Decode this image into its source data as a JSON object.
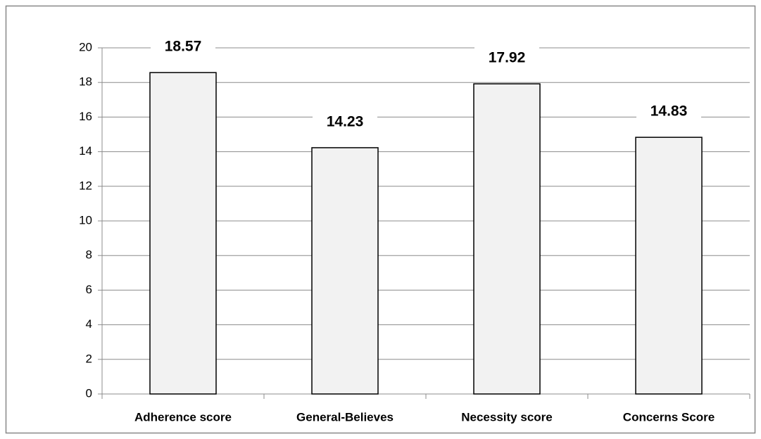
{
  "chart_data": {
    "type": "bar",
    "categories": [
      "Adherence score",
      "General-Believes",
      "Necessity score",
      "Concerns Score"
    ],
    "values": [
      18.57,
      14.23,
      17.92,
      14.83
    ],
    "color": "#f2f2f2",
    "ylim": [
      0,
      20
    ],
    "yticks": [
      0,
      2,
      4,
      6,
      8,
      10,
      12,
      14,
      16,
      18,
      20
    ],
    "grid": true
  }
}
